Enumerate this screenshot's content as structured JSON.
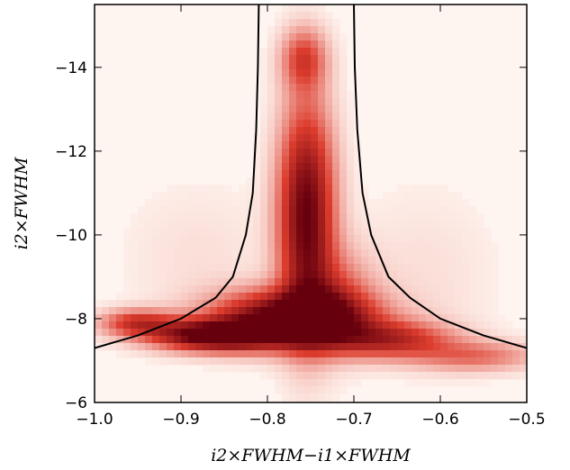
{
  "chart_data": {
    "type": "heatmap",
    "title": "",
    "xlabel": "i2×FWHM−i1×FWHM",
    "ylabel": "i2×FWHM",
    "xlim": [
      -1.0,
      -0.5
    ],
    "ylim": [
      -6.0,
      -15.5
    ],
    "y_axis_inverted": true,
    "grid": false,
    "colormap": "white-to-dark-red",
    "colors": {
      "low": "#fff5f0",
      "high": "#67000d",
      "curve": "#000000"
    },
    "x_ticks": [
      {
        "value": -1.0,
        "label": "−1.0"
      },
      {
        "value": -0.9,
        "label": "−0.9"
      },
      {
        "value": -0.8,
        "label": "−0.8"
      },
      {
        "value": -0.7,
        "label": "−0.7"
      },
      {
        "value": -0.6,
        "label": "−0.6"
      },
      {
        "value": -0.5,
        "label": "−0.5"
      }
    ],
    "y_ticks": [
      {
        "value": -6,
        "label": "−6"
      },
      {
        "value": -8,
        "label": "−8"
      },
      {
        "value": -10,
        "label": "−10"
      },
      {
        "value": -12,
        "label": "−12"
      },
      {
        "value": -14,
        "label": "−14"
      }
    ],
    "density_components": [
      {
        "x": -0.755,
        "y": -10.5,
        "sx": 0.022,
        "sy": 1.8,
        "weight": 1.0
      },
      {
        "x": -0.758,
        "y": -14.2,
        "sx": 0.018,
        "sy": 0.5,
        "weight": 0.45
      },
      {
        "x": -0.77,
        "y": -8.0,
        "sx": 0.06,
        "sy": 0.45,
        "weight": 1.2
      },
      {
        "x": -0.86,
        "y": -7.6,
        "sx": 0.05,
        "sy": 0.25,
        "weight": 1.1
      },
      {
        "x": -0.95,
        "y": -7.9,
        "sx": 0.03,
        "sy": 0.22,
        "weight": 0.55
      },
      {
        "x": -0.66,
        "y": -7.5,
        "sx": 0.05,
        "sy": 0.3,
        "weight": 0.6
      },
      {
        "x": -0.56,
        "y": -7.1,
        "sx": 0.05,
        "sy": 0.25,
        "weight": 0.35
      },
      {
        "x": -0.72,
        "y": -8.5,
        "sx": 0.03,
        "sy": 0.8,
        "weight": 0.35
      },
      {
        "x": -0.88,
        "y": -9.5,
        "sx": 0.06,
        "sy": 1.2,
        "weight": 0.06
      },
      {
        "x": -0.62,
        "y": -9.0,
        "sx": 0.06,
        "sy": 1.5,
        "weight": 0.06
      }
    ],
    "curves": [
      {
        "name": "",
        "points": [
          [
            -1.0,
            -7.3
          ],
          [
            -0.95,
            -7.6
          ],
          [
            -0.9,
            -8.0
          ],
          [
            -0.86,
            -8.5
          ],
          [
            -0.84,
            -9.0
          ],
          [
            -0.825,
            -10.0
          ],
          [
            -0.817,
            -11.0
          ],
          [
            -0.813,
            -12.5
          ],
          [
            -0.811,
            -14.0
          ],
          [
            -0.81,
            -15.5
          ]
        ]
      },
      {
        "name": "",
        "points": [
          [
            -0.7,
            -15.5
          ],
          [
            -0.699,
            -14.0
          ],
          [
            -0.696,
            -12.5
          ],
          [
            -0.69,
            -11.0
          ],
          [
            -0.68,
            -10.0
          ],
          [
            -0.66,
            -9.0
          ],
          [
            -0.635,
            -8.5
          ],
          [
            -0.6,
            -8.0
          ],
          [
            -0.55,
            -7.6
          ],
          [
            -0.5,
            -7.3
          ]
        ]
      }
    ]
  }
}
